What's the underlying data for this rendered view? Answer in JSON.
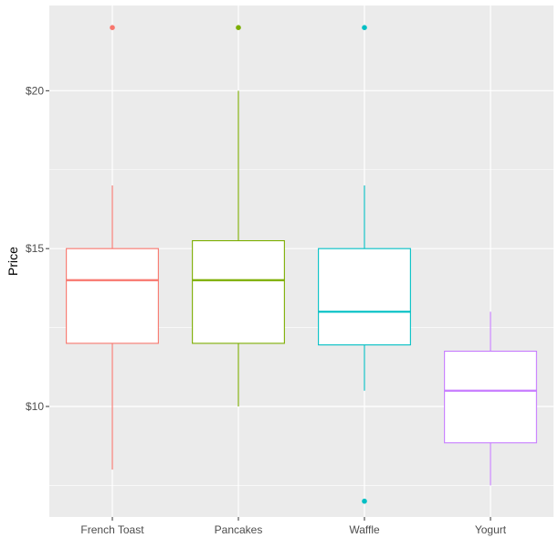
{
  "chart_data": {
    "type": "box",
    "ylabel": "Price",
    "xlabel": "",
    "ylim": [
      6.5,
      22.7
    ],
    "grid": true,
    "legend": "none",
    "y_major_ticks": [
      10,
      15,
      20
    ],
    "y_tick_labels": [
      "$10",
      "$15",
      "$20"
    ],
    "y_minor_ticks": [
      7.5,
      12.5,
      17.5
    ],
    "categories": [
      "French Toast",
      "Pancakes",
      "Waffle",
      "Yogurt"
    ],
    "boxes": [
      {
        "category": "French Toast",
        "color": "#F8766D",
        "whisker_low": 8,
        "q1": 12,
        "median": 14,
        "q3": 15,
        "whisker_high": 17,
        "outliers": [
          22
        ]
      },
      {
        "category": "Pancakes",
        "color": "#7CAE00",
        "whisker_low": 10,
        "q1": 12,
        "median": 14,
        "q3": 15.25,
        "whisker_high": 20,
        "outliers": [
          22
        ]
      },
      {
        "category": "Waffle",
        "color": "#00BFC4",
        "whisker_low": 10.5,
        "q1": 11.95,
        "median": 13,
        "q3": 15,
        "whisker_high": 17,
        "outliers": [
          22,
          7
        ]
      },
      {
        "category": "Yogurt",
        "color": "#C77CFF",
        "whisker_low": 7.5,
        "q1": 8.85,
        "median": 10.5,
        "q3": 11.75,
        "whisker_high": 13,
        "outliers": []
      }
    ],
    "panel_background": "#EBEBEB",
    "grid_color": "#FFFFFF"
  }
}
